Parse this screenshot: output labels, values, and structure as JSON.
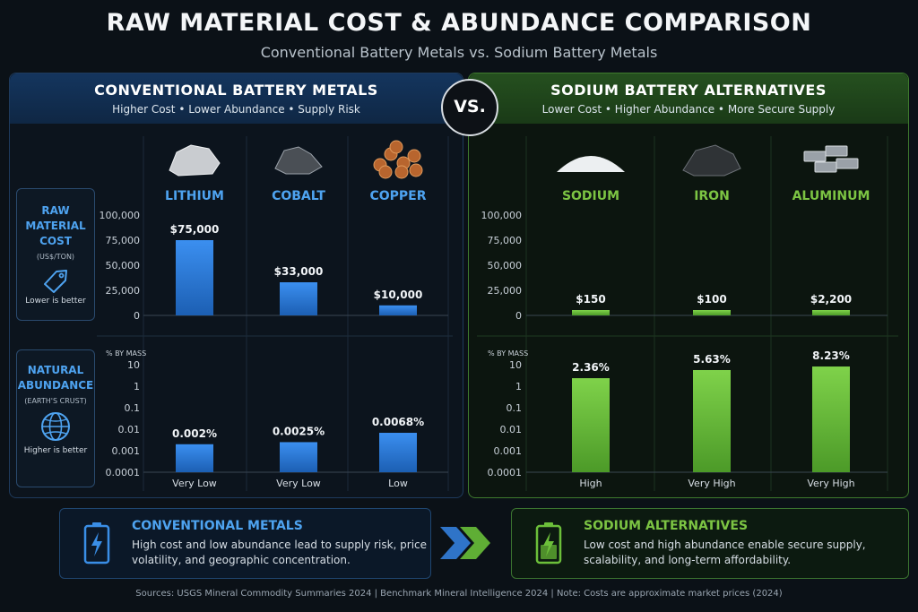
{
  "title": "RAW MATERIAL COST & ABUNDANCE COMPARISON",
  "subtitle": "Conventional Battery Metals vs. Sodium Battery Metals",
  "vs_label": "VS.",
  "left_panel": {
    "title": "CONVENTIONAL BATTERY METALS",
    "subtitle": "Higher Cost • Lower Abundance • Supply Risk",
    "accent": "#3a8ee6"
  },
  "right_panel": {
    "title": "SODIUM BATTERY ALTERNATIVES",
    "subtitle": "Lower Cost • Higher Abundance • More Secure Supply",
    "accent": "#6cbf3a"
  },
  "cost_box": {
    "title": "RAW MATERIAL COST",
    "unit": "(US$/TON)",
    "icon": "price-tag-icon",
    "note": "Lower is better"
  },
  "abundance_box": {
    "title": "NATURAL ABUNDANCE",
    "unit": "(EARTH'S CRUST)",
    "icon": "globe-icon",
    "note": "Higher is better"
  },
  "chart_data": [
    {
      "type": "bar",
      "group": "conventional",
      "metric": "cost",
      "categories": [
        "LITHIUM",
        "COBALT",
        "COPPER"
      ],
      "values": [
        75000,
        33000,
        10000
      ],
      "value_labels": [
        "$75,000",
        "$33,000",
        "$10,000"
      ],
      "ylim": [
        0,
        100000
      ],
      "yticks": [
        "100,000",
        "75,000",
        "50,000",
        "25,000",
        "0"
      ],
      "color": "#2f80d8"
    },
    {
      "type": "bar",
      "group": "conventional",
      "metric": "abundance",
      "categories": [
        "LITHIUM",
        "COBALT",
        "COPPER"
      ],
      "values": [
        0.002,
        0.0025,
        0.0068
      ],
      "value_labels": [
        "0.002%",
        "0.0025%",
        "0.0068%"
      ],
      "ylabel": "% BY MASS",
      "scale": "log",
      "ylim": [
        0.0001,
        10
      ],
      "yticks": [
        "10",
        "1",
        "0.1",
        "0.01",
        "0.001",
        "0.0001"
      ],
      "bottom_labels": [
        "Very Low",
        "Very Low",
        "Low"
      ],
      "color": "#2f80d8"
    },
    {
      "type": "bar",
      "group": "sodium",
      "metric": "cost",
      "categories": [
        "SODIUM",
        "IRON",
        "ALUMINUM"
      ],
      "values": [
        150,
        100,
        2200
      ],
      "value_labels": [
        "$150",
        "$100",
        "$2,200"
      ],
      "ylim": [
        0,
        100000
      ],
      "yticks": [
        "100,000",
        "75,000",
        "50,000",
        "25,000",
        "0"
      ],
      "color": "#6cbf3a"
    },
    {
      "type": "bar",
      "group": "sodium",
      "metric": "abundance",
      "categories": [
        "SODIUM",
        "IRON",
        "ALUMINUM"
      ],
      "values": [
        2.36,
        5.63,
        8.23
      ],
      "value_labels": [
        "2.36%",
        "5.63%",
        "8.23%"
      ],
      "ylabel": "% BY MASS",
      "scale": "log",
      "ylim": [
        0.0001,
        10
      ],
      "yticks": [
        "10",
        "1",
        "0.1",
        "0.01",
        "0.001",
        "0.0001"
      ],
      "bottom_labels": [
        "High",
        "Very High",
        "Very High"
      ],
      "color": "#6cbf3a"
    }
  ],
  "summary_left": {
    "title": "CONVENTIONAL METALS",
    "text": "High cost and low abundance lead to supply risk, price volatility, and geographic concentration.",
    "icon": "battery-bolt-icon"
  },
  "summary_right": {
    "title": "SODIUM ALTERNATIVES",
    "text": "Low cost and high abundance enable secure supply, scalability, and long-term affordability.",
    "icon": "battery-bolt-icon"
  },
  "footer": "Sources: USGS Mineral Commodity Summaries 2024  |  Benchmark Mineral Intelligence 2024  |  Note: Costs are approximate market prices (2024)"
}
